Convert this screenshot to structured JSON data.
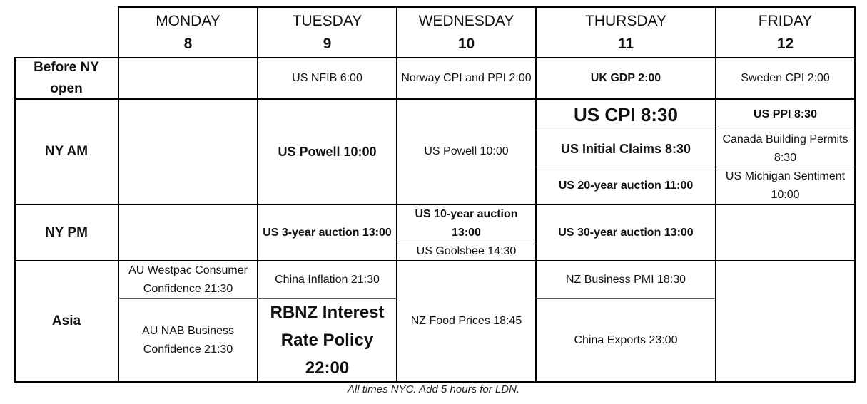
{
  "days": [
    {
      "name": "MONDAY",
      "date": "8"
    },
    {
      "name": "TUESDAY",
      "date": "9"
    },
    {
      "name": "WEDNESDAY",
      "date": "10"
    },
    {
      "name": "THURSDAY",
      "date": "11"
    },
    {
      "name": "FRIDAY",
      "date": "12"
    }
  ],
  "rows": {
    "before_ny_open": "Before NY open",
    "ny_am": "NY AM",
    "ny_pm": "NY PM",
    "asia": "Asia"
  },
  "events": {
    "tue_before": "US NFIB 6:00",
    "wed_before": "Norway CPI and PPI 2:00",
    "thu_before": "UK GDP 2:00",
    "fri_before": "Sweden CPI 2:00",
    "tue_am": "US Powell 10:00",
    "wed_am": "US Powell 10:00",
    "thu_am_1": "US CPI 8:30",
    "thu_am_2": "US Initial Claims 8:30",
    "thu_am_3": "US 20-year auction 11:00",
    "fri_am_1": "US PPI 8:30",
    "fri_am_2": "Canada Building Permits 8:30",
    "fri_am_3": "US Michigan Sentiment 10:00",
    "tue_pm": "US 3-year auction 13:00",
    "wed_pm_1": "US 10-year auction 13:00",
    "wed_pm_2": "US Goolsbee 14:30",
    "thu_pm": "US 30-year auction 13:00",
    "mon_asia_1": "AU Westpac Consumer Confidence 21:30",
    "mon_asia_2": "AU NAB Business Confidence 21:30",
    "tue_asia_1": "China Inflation 21:30",
    "tue_asia_2": "RBNZ Interest Rate Policy 22:00",
    "wed_asia": "NZ Food Prices 18:45",
    "thu_asia_1": "NZ Business PMI 18:30",
    "thu_asia_2": "China Exports 23:00"
  },
  "footer": "All times NYC. Add 5 hours for LDN."
}
